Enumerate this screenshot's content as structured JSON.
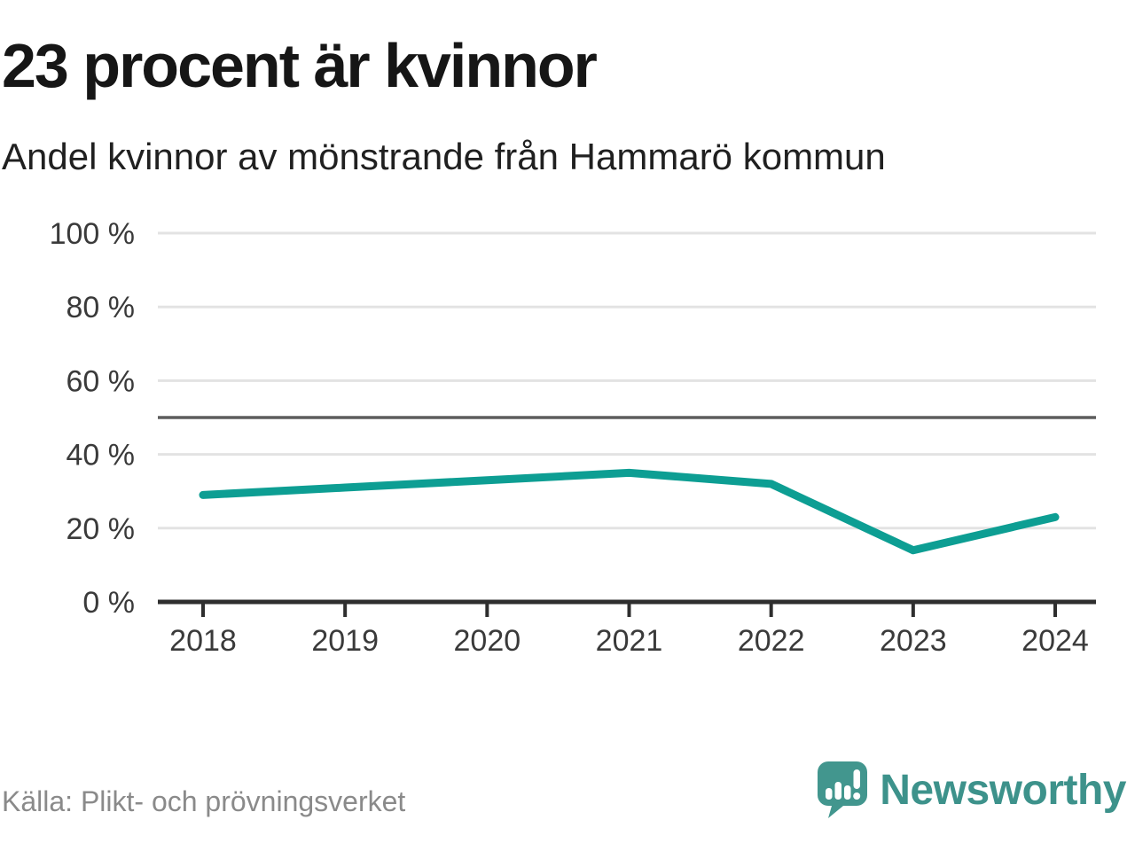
{
  "header": {
    "title": "23 procent är kvinnor",
    "subtitle": "Andel kvinnor av mönstrande från Hammarö kommun"
  },
  "chart_data": {
    "type": "line",
    "title": "23 procent är kvinnor",
    "subtitle": "Andel kvinnor av mönstrande från Hammarö kommun",
    "categories": [
      "2018",
      "2019",
      "2020",
      "2021",
      "2022",
      "2023",
      "2024"
    ],
    "series": [
      {
        "name": "Andel kvinnor av mönstrande",
        "values": [
          29,
          31,
          33,
          35,
          32,
          14,
          23
        ]
      }
    ],
    "unit": "%",
    "ylim": [
      0,
      100
    ],
    "yticks": [
      0,
      20,
      40,
      60,
      80,
      100
    ],
    "ytick_suffix": " %",
    "reference_line": 50,
    "grid": true,
    "legend": "none",
    "colors": {
      "line": "#0d9e93",
      "grid": "#e3e3e3",
      "reference": "#5d5d5d",
      "axis": "#2e2e2e",
      "tick_text": "#3a3a3a"
    }
  },
  "footer": {
    "source": "Källa: Plikt- och prövningsverket",
    "brand": "Newsworthy",
    "logo_icon": "newsworthy-speech-bubble-bar-chart-icon",
    "brand_color": "#3d928b",
    "logo_bubble_color": "#42968e"
  }
}
